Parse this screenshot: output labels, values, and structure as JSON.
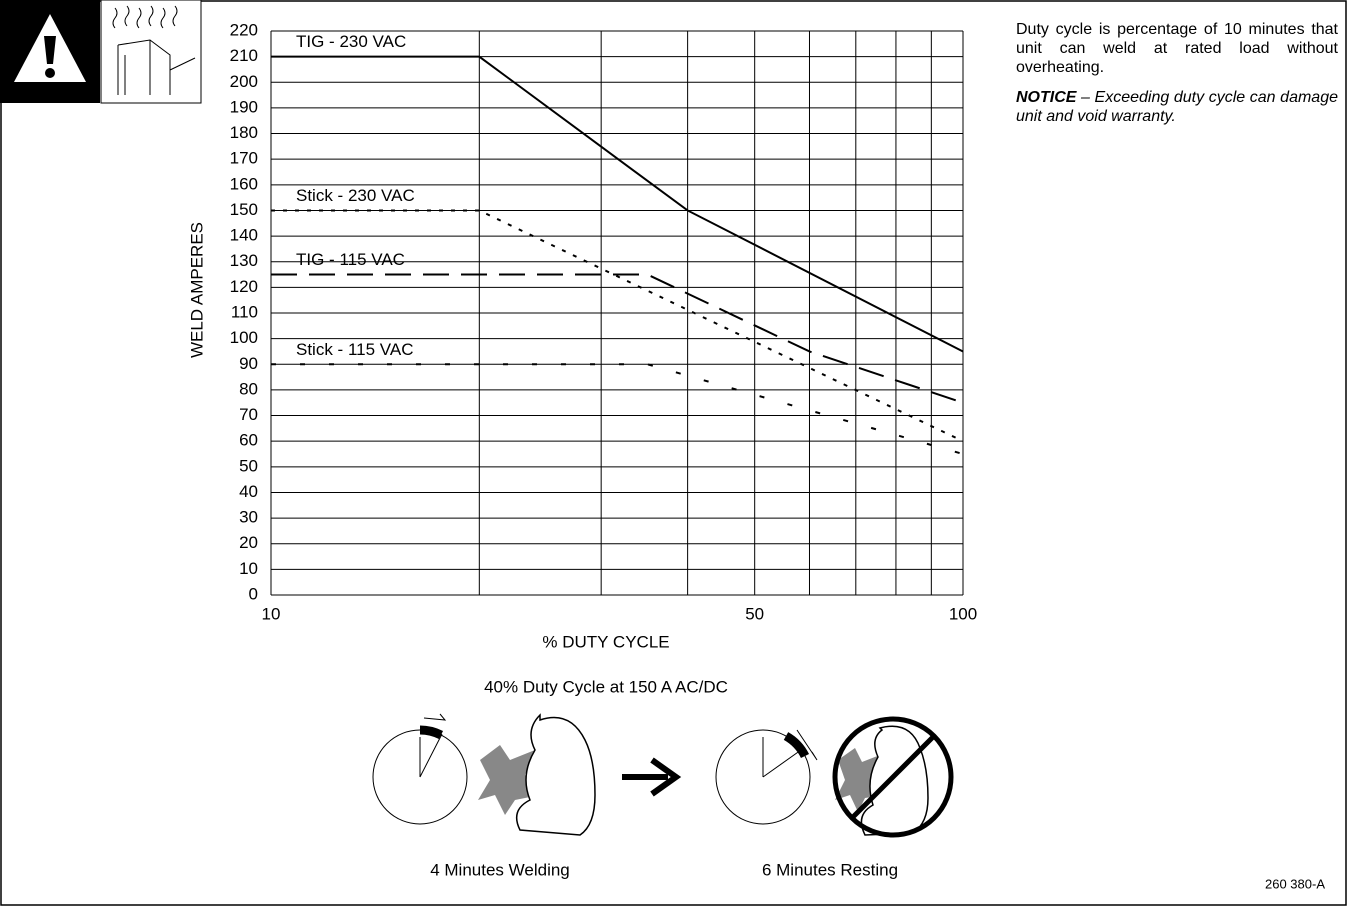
{
  "chart_data": {
    "type": "line",
    "x_label": "% DUTY CYCLE",
    "y_label": "WELD AMPERES",
    "xscale": "log",
    "xlim": [
      10,
      100
    ],
    "xticks": [
      10,
      50,
      100
    ],
    "xgrid": [
      20,
      30,
      40,
      60,
      70,
      80,
      90
    ],
    "ylim": [
      0,
      220
    ],
    "yticks": [
      0,
      10,
      20,
      30,
      40,
      50,
      60,
      70,
      80,
      90,
      100,
      110,
      120,
      130,
      140,
      150,
      160,
      170,
      180,
      190,
      200,
      210,
      220
    ],
    "grid": true,
    "series": [
      {
        "name": "TIG - 230 VAC",
        "color": "#000000",
        "line_style": "solid",
        "x": [
          10,
          20,
          40,
          100
        ],
        "values": [
          210,
          210,
          150,
          95
        ]
      },
      {
        "name": "Stick - 230 VAC",
        "color": "#000000",
        "line_style": "dotted",
        "x": [
          10,
          20,
          100
        ],
        "values": [
          150,
          150,
          60
        ]
      },
      {
        "name": "TIG - 115 VAC",
        "color": "#000000",
        "line_style": "long-dash",
        "x": [
          10,
          35,
          60,
          100
        ],
        "values": [
          125,
          125,
          95,
          75
        ]
      },
      {
        "name": "Stick - 115 VAC",
        "color": "#000000",
        "line_style": "sparse-dash",
        "x": [
          10,
          35,
          100
        ],
        "values": [
          90,
          90,
          55
        ]
      }
    ]
  },
  "description": "Duty cycle is percentage of 10 minutes that unit can weld at rated load without overheating.",
  "notice": {
    "label": "NOTICE",
    "text": " – Exceeding duty cycle can damage unit and void warranty."
  },
  "illustration": {
    "title": "40% Duty Cycle at 150 A AC/DC",
    "welding": "4 Minutes Welding",
    "resting": "6 Minutes Resting"
  },
  "doc_id": "260 380-A"
}
